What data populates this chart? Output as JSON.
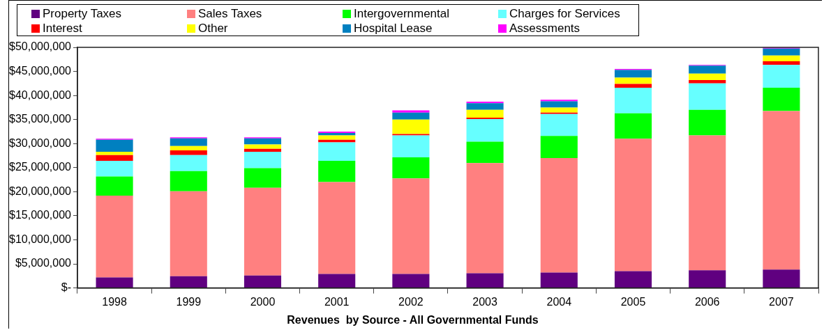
{
  "chart_data": {
    "type": "bar",
    "stacked": true,
    "title": "Revenues  by Source - All Governmental Funds",
    "categories": [
      "1998",
      "1999",
      "2000",
      "2001",
      "2002",
      "2003",
      "2004",
      "2005",
      "2006",
      "2007"
    ],
    "series": [
      {
        "name": "Property Taxes",
        "color": "#600080",
        "values": [
          2200000,
          2450000,
          2600000,
          2900000,
          2900000,
          3050000,
          3200000,
          3500000,
          3650000,
          3800000
        ]
      },
      {
        "name": "Sales Taxes",
        "color": "#ff8080",
        "values": [
          17000000,
          17650000,
          18200000,
          19100000,
          19850000,
          22900000,
          23800000,
          27500000,
          28050000,
          32950000
        ]
      },
      {
        "name": "Intergovernmental",
        "color": "#00ff00",
        "values": [
          3950000,
          4200000,
          4100000,
          4400000,
          4400000,
          4450000,
          4600000,
          5300000,
          5300000,
          4850000
        ]
      },
      {
        "name": "Charges for Services",
        "color": "#66ffff",
        "values": [
          3250000,
          3300000,
          3400000,
          3850000,
          4550000,
          4700000,
          4550000,
          5300000,
          5500000,
          4750000
        ]
      },
      {
        "name": "Interest",
        "color": "#ff0000",
        "values": [
          1200000,
          1000000,
          600000,
          550000,
          300000,
          300000,
          300000,
          800000,
          700000,
          750000
        ]
      },
      {
        "name": "Other",
        "color": "#ffff00",
        "values": [
          700000,
          900000,
          900000,
          900000,
          3000000,
          1600000,
          1050000,
          1300000,
          1350000,
          1200000
        ]
      },
      {
        "name": "Hospital Lease",
        "color": "#0080c0",
        "values": [
          2500000,
          1600000,
          1300000,
          500000,
          1450000,
          1400000,
          1300000,
          1600000,
          1650000,
          1450000
        ]
      },
      {
        "name": "Assessments",
        "color": "#ff00ff",
        "values": [
          200000,
          200000,
          200000,
          300000,
          450000,
          300000,
          300000,
          200000,
          150000,
          200000
        ]
      }
    ],
    "ylim": [
      0,
      50000000
    ],
    "yticks": [
      {
        "value": 0,
        "label": "$-"
      },
      {
        "value": 5000000,
        "label": "$5,000,000"
      },
      {
        "value": 10000000,
        "label": "$10,000,000"
      },
      {
        "value": 15000000,
        "label": "$15,000,000"
      },
      {
        "value": 20000000,
        "label": "$20,000,000"
      },
      {
        "value": 25000000,
        "label": "$25,000,000"
      },
      {
        "value": 30000000,
        "label": "$30,000,000"
      },
      {
        "value": 35000000,
        "label": "$35,000,000"
      },
      {
        "value": 40000000,
        "label": "$40,000,000"
      },
      {
        "value": 45000000,
        "label": "$45,000,000"
      },
      {
        "value": 50000000,
        "label": "$50,000,000"
      }
    ],
    "grid": false,
    "legend": "top"
  }
}
